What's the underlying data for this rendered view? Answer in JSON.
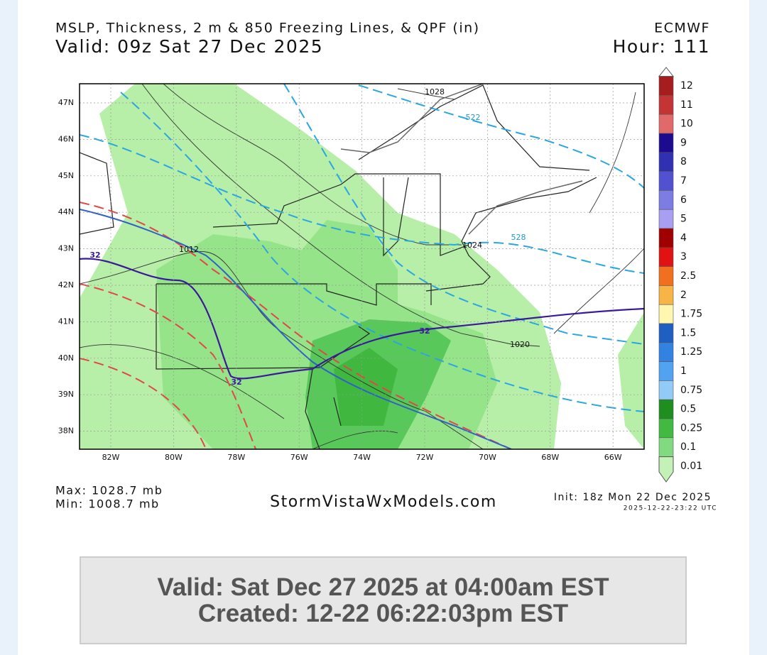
{
  "header": {
    "title": "MSLP, Thickness, 2 m & 850 Freezing Lines, & QPF (in)",
    "valid": "Valid: 09z Sat 27 Dec 2025",
    "model": "ECMWF",
    "hour": "Hour: 111"
  },
  "map": {
    "lat_labels": [
      "47N",
      "46N",
      "45N",
      "44N",
      "43N",
      "42N",
      "41N",
      "40N",
      "39N",
      "38N"
    ],
    "lon_labels": [
      "82W",
      "80W",
      "78W",
      "76W",
      "74W",
      "72W",
      "70W",
      "68W",
      "66W"
    ],
    "contour_labels": [
      "1028",
      "522",
      "528",
      "1024",
      "1012",
      "1020",
      "32",
      "32",
      "32"
    ]
  },
  "legend": {
    "items": [
      {
        "label": "12",
        "color": "#a51d1d"
      },
      {
        "label": "11",
        "color": "#c53434"
      },
      {
        "label": "10",
        "color": "#e06a6a"
      },
      {
        "label": "9",
        "color": "#1c0b8f"
      },
      {
        "label": "8",
        "color": "#3030b2"
      },
      {
        "label": "7",
        "color": "#5252d0"
      },
      {
        "label": "6",
        "color": "#7c7ce2"
      },
      {
        "label": "5",
        "color": "#a99ff2"
      },
      {
        "label": "4",
        "color": "#a00000"
      },
      {
        "label": "3",
        "color": "#e01212"
      },
      {
        "label": "2.5",
        "color": "#f07020"
      },
      {
        "label": "2",
        "color": "#f8b444"
      },
      {
        "label": "1.75",
        "color": "#fff7b0"
      },
      {
        "label": "1.5",
        "color": "#1f5fc2"
      },
      {
        "label": "1.25",
        "color": "#3282e2"
      },
      {
        "label": "1",
        "color": "#52a2f2"
      },
      {
        "label": "0.75",
        "color": "#92caf8"
      },
      {
        "label": "0.5",
        "color": "#1e8f1e"
      },
      {
        "label": "0.25",
        "color": "#42ba42"
      },
      {
        "label": "0.1",
        "color": "#82da80"
      },
      {
        "label": "0.01",
        "color": "#c4f2b6"
      }
    ]
  },
  "footer": {
    "max": "Max: 1028.7 mb",
    "min": "Min: 1008.7 mb",
    "site": "StormVistaWxModels.com",
    "init": "Init: 18z Mon 22 Dec 2025",
    "timestamp": "2025-12-22-23:22 UTC"
  },
  "caption": {
    "line1": "Valid: Sat Dec 27 2025 at 04:00am EST",
    "line2": "Created: 12-22 06:22:03pm EST"
  }
}
